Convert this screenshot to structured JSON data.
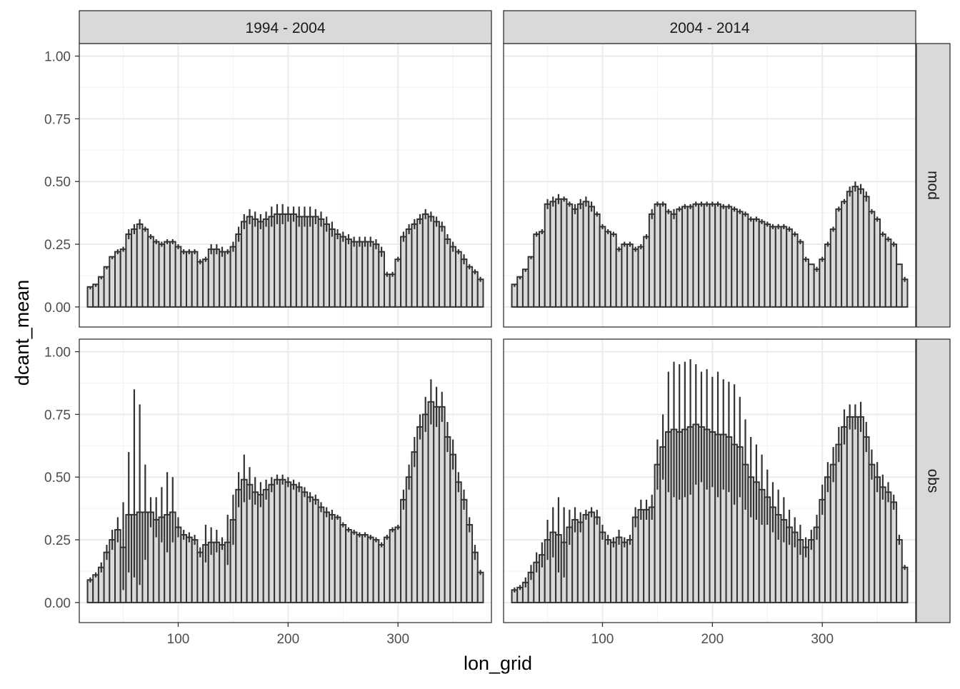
{
  "chart_data": {
    "type": "bar",
    "xlabel": "lon_grid",
    "ylabel": "dcant_mean",
    "xlim": [
      10,
      385
    ],
    "ylim": [
      -0.08,
      1.05
    ],
    "xticks": [
      100,
      200,
      300
    ],
    "yticks": [
      0.0,
      0.25,
      0.5,
      0.75,
      1.0
    ],
    "ytick_labels": [
      "0.00",
      "0.25",
      "0.50",
      "0.75",
      "1.00"
    ],
    "grid": true,
    "column_facets": [
      "1994 - 2004",
      "2004 - 2014"
    ],
    "row_facets": [
      "mod",
      "obs"
    ],
    "bar_fill": "#d9d9d9",
    "bar_outline": "#333333",
    "strip_fill": "#d9d9d9",
    "panels": [
      {
        "column": "1994 - 2004",
        "row": "mod",
        "x": [
          20,
          25,
          30,
          35,
          40,
          45,
          50,
          55,
          60,
          65,
          70,
          75,
          80,
          85,
          90,
          95,
          100,
          105,
          110,
          115,
          120,
          125,
          130,
          135,
          140,
          145,
          150,
          155,
          160,
          165,
          170,
          175,
          180,
          185,
          190,
          195,
          200,
          205,
          210,
          215,
          220,
          225,
          230,
          235,
          240,
          245,
          250,
          255,
          260,
          265,
          270,
          275,
          280,
          285,
          290,
          295,
          300,
          305,
          310,
          315,
          320,
          325,
          330,
          335,
          340,
          345,
          350,
          355,
          360,
          365,
          370,
          375
        ],
        "values": [
          0.08,
          0.09,
          0.12,
          0.16,
          0.2,
          0.22,
          0.23,
          0.29,
          0.31,
          0.33,
          0.31,
          0.28,
          0.26,
          0.25,
          0.26,
          0.26,
          0.24,
          0.22,
          0.22,
          0.22,
          0.18,
          0.19,
          0.23,
          0.23,
          0.22,
          0.22,
          0.24,
          0.29,
          0.34,
          0.36,
          0.35,
          0.34,
          0.35,
          0.36,
          0.37,
          0.37,
          0.37,
          0.37,
          0.36,
          0.36,
          0.36,
          0.36,
          0.35,
          0.33,
          0.31,
          0.29,
          0.28,
          0.27,
          0.26,
          0.26,
          0.26,
          0.26,
          0.25,
          0.22,
          0.13,
          0.13,
          0.19,
          0.28,
          0.31,
          0.33,
          0.35,
          0.37,
          0.36,
          0.34,
          0.32,
          0.27,
          0.24,
          0.22,
          0.19,
          0.16,
          0.14,
          0.11
        ],
        "upper": [
          0.08,
          0.09,
          0.12,
          0.16,
          0.2,
          0.23,
          0.24,
          0.31,
          0.33,
          0.35,
          0.32,
          0.29,
          0.27,
          0.26,
          0.27,
          0.27,
          0.25,
          0.23,
          0.23,
          0.23,
          0.19,
          0.2,
          0.25,
          0.25,
          0.24,
          0.23,
          0.26,
          0.32,
          0.37,
          0.39,
          0.38,
          0.37,
          0.38,
          0.4,
          0.41,
          0.41,
          0.4,
          0.4,
          0.4,
          0.4,
          0.4,
          0.39,
          0.38,
          0.36,
          0.34,
          0.31,
          0.3,
          0.29,
          0.28,
          0.28,
          0.28,
          0.28,
          0.27,
          0.24,
          0.14,
          0.14,
          0.2,
          0.3,
          0.33,
          0.35,
          0.37,
          0.39,
          0.38,
          0.36,
          0.34,
          0.29,
          0.26,
          0.23,
          0.21,
          0.17,
          0.15,
          0.12
        ],
        "lower": [
          0.07,
          0.08,
          0.11,
          0.15,
          0.19,
          0.21,
          0.22,
          0.27,
          0.29,
          0.31,
          0.3,
          0.27,
          0.25,
          0.24,
          0.25,
          0.25,
          0.23,
          0.21,
          0.21,
          0.21,
          0.17,
          0.18,
          0.21,
          0.21,
          0.2,
          0.21,
          0.22,
          0.26,
          0.31,
          0.33,
          0.32,
          0.31,
          0.32,
          0.32,
          0.33,
          0.33,
          0.34,
          0.34,
          0.32,
          0.32,
          0.32,
          0.33,
          0.32,
          0.3,
          0.28,
          0.27,
          0.26,
          0.25,
          0.24,
          0.24,
          0.24,
          0.24,
          0.23,
          0.2,
          0.12,
          0.12,
          0.18,
          0.26,
          0.29,
          0.31,
          0.33,
          0.35,
          0.34,
          0.32,
          0.3,
          0.25,
          0.22,
          0.21,
          0.17,
          0.15,
          0.13,
          0.1
        ]
      },
      {
        "column": "2004 - 2014",
        "row": "mod",
        "x": [
          20,
          25,
          30,
          35,
          40,
          45,
          50,
          55,
          60,
          65,
          70,
          75,
          80,
          85,
          90,
          95,
          100,
          105,
          110,
          115,
          120,
          125,
          130,
          135,
          140,
          145,
          150,
          155,
          160,
          165,
          170,
          175,
          180,
          185,
          190,
          195,
          200,
          205,
          210,
          215,
          220,
          225,
          230,
          235,
          240,
          245,
          250,
          255,
          260,
          265,
          270,
          275,
          280,
          285,
          290,
          295,
          300,
          305,
          310,
          315,
          320,
          325,
          330,
          335,
          340,
          345,
          350,
          355,
          360,
          365,
          370,
          375
        ],
        "values": [
          0.09,
          0.12,
          0.15,
          0.2,
          0.29,
          0.3,
          0.41,
          0.42,
          0.43,
          0.43,
          0.41,
          0.39,
          0.41,
          0.42,
          0.4,
          0.37,
          0.32,
          0.3,
          0.29,
          0.23,
          0.25,
          0.25,
          0.23,
          0.24,
          0.28,
          0.37,
          0.41,
          0.41,
          0.38,
          0.37,
          0.39,
          0.4,
          0.4,
          0.41,
          0.41,
          0.41,
          0.41,
          0.41,
          0.4,
          0.4,
          0.39,
          0.38,
          0.37,
          0.35,
          0.35,
          0.34,
          0.33,
          0.32,
          0.32,
          0.32,
          0.31,
          0.29,
          0.26,
          0.19,
          0.17,
          0.15,
          0.19,
          0.25,
          0.31,
          0.39,
          0.42,
          0.46,
          0.48,
          0.47,
          0.44,
          0.38,
          0.35,
          0.29,
          0.27,
          0.25,
          0.17,
          0.11
        ],
        "upper": [
          0.09,
          0.12,
          0.15,
          0.2,
          0.3,
          0.31,
          0.43,
          0.44,
          0.45,
          0.44,
          0.42,
          0.41,
          0.43,
          0.44,
          0.42,
          0.38,
          0.33,
          0.31,
          0.3,
          0.24,
          0.26,
          0.26,
          0.24,
          0.25,
          0.29,
          0.39,
          0.42,
          0.42,
          0.39,
          0.39,
          0.4,
          0.41,
          0.41,
          0.42,
          0.42,
          0.42,
          0.42,
          0.42,
          0.41,
          0.41,
          0.4,
          0.39,
          0.38,
          0.36,
          0.36,
          0.35,
          0.34,
          0.33,
          0.33,
          0.33,
          0.32,
          0.3,
          0.27,
          0.2,
          0.17,
          0.16,
          0.2,
          0.26,
          0.32,
          0.4,
          0.43,
          0.48,
          0.5,
          0.49,
          0.46,
          0.39,
          0.36,
          0.3,
          0.28,
          0.26,
          0.17,
          0.12
        ],
        "lower": [
          0.08,
          0.11,
          0.14,
          0.19,
          0.28,
          0.29,
          0.39,
          0.4,
          0.41,
          0.42,
          0.4,
          0.37,
          0.39,
          0.4,
          0.38,
          0.36,
          0.31,
          0.29,
          0.28,
          0.22,
          0.24,
          0.24,
          0.22,
          0.23,
          0.27,
          0.35,
          0.4,
          0.4,
          0.37,
          0.35,
          0.38,
          0.39,
          0.39,
          0.4,
          0.4,
          0.4,
          0.4,
          0.4,
          0.39,
          0.39,
          0.38,
          0.37,
          0.36,
          0.34,
          0.34,
          0.33,
          0.32,
          0.31,
          0.31,
          0.31,
          0.3,
          0.28,
          0.25,
          0.18,
          0.17,
          0.14,
          0.18,
          0.24,
          0.3,
          0.38,
          0.41,
          0.44,
          0.46,
          0.45,
          0.42,
          0.37,
          0.34,
          0.28,
          0.26,
          0.24,
          0.17,
          0.1
        ]
      },
      {
        "column": "1994 - 2004",
        "row": "obs",
        "x": [
          20,
          25,
          30,
          35,
          40,
          45,
          50,
          55,
          60,
          65,
          70,
          75,
          80,
          85,
          90,
          95,
          100,
          105,
          110,
          115,
          120,
          125,
          130,
          135,
          140,
          145,
          150,
          155,
          160,
          165,
          170,
          175,
          180,
          185,
          190,
          195,
          200,
          205,
          210,
          215,
          220,
          225,
          230,
          235,
          240,
          245,
          250,
          255,
          260,
          265,
          270,
          275,
          280,
          285,
          290,
          295,
          300,
          305,
          310,
          315,
          320,
          325,
          330,
          335,
          340,
          345,
          350,
          355,
          360,
          365,
          370,
          375
        ],
        "values": [
          0.09,
          0.11,
          0.14,
          0.2,
          0.25,
          0.29,
          0.22,
          0.35,
          0.35,
          0.36,
          0.36,
          0.36,
          0.33,
          0.34,
          0.35,
          0.36,
          0.3,
          0.27,
          0.26,
          0.25,
          0.2,
          0.23,
          0.24,
          0.24,
          0.23,
          0.24,
          0.33,
          0.45,
          0.49,
          0.47,
          0.44,
          0.43,
          0.45,
          0.47,
          0.49,
          0.49,
          0.48,
          0.47,
          0.46,
          0.44,
          0.42,
          0.41,
          0.38,
          0.36,
          0.35,
          0.34,
          0.31,
          0.29,
          0.28,
          0.27,
          0.27,
          0.26,
          0.25,
          0.23,
          0.26,
          0.29,
          0.3,
          0.41,
          0.5,
          0.6,
          0.7,
          0.75,
          0.8,
          0.78,
          0.78,
          0.66,
          0.59,
          0.48,
          0.41,
          0.31,
          0.2,
          0.12
        ],
        "upper": [
          0.1,
          0.12,
          0.16,
          0.23,
          0.29,
          0.34,
          0.4,
          0.6,
          0.85,
          0.79,
          0.55,
          0.42,
          0.42,
          0.46,
          0.52,
          0.5,
          0.34,
          0.29,
          0.28,
          0.27,
          0.22,
          0.31,
          0.3,
          0.29,
          0.26,
          0.35,
          0.43,
          0.52,
          0.59,
          0.54,
          0.5,
          0.48,
          0.49,
          0.5,
          0.51,
          0.51,
          0.5,
          0.49,
          0.48,
          0.46,
          0.44,
          0.43,
          0.4,
          0.38,
          0.37,
          0.35,
          0.32,
          0.3,
          0.29,
          0.28,
          0.28,
          0.27,
          0.26,
          0.24,
          0.27,
          0.3,
          0.31,
          0.45,
          0.55,
          0.66,
          0.75,
          0.82,
          0.89,
          0.86,
          0.84,
          0.72,
          0.65,
          0.52,
          0.45,
          0.34,
          0.23,
          0.13
        ],
        "lower": [
          0.08,
          0.1,
          0.12,
          0.17,
          0.21,
          0.24,
          0.05,
          0.12,
          0.1,
          0.07,
          0.17,
          0.3,
          0.26,
          0.24,
          0.2,
          0.24,
          0.26,
          0.25,
          0.24,
          0.23,
          0.18,
          0.16,
          0.19,
          0.2,
          0.21,
          0.15,
          0.23,
          0.38,
          0.4,
          0.41,
          0.39,
          0.38,
          0.41,
          0.44,
          0.47,
          0.47,
          0.46,
          0.45,
          0.44,
          0.42,
          0.4,
          0.39,
          0.36,
          0.34,
          0.33,
          0.33,
          0.3,
          0.28,
          0.27,
          0.26,
          0.26,
          0.25,
          0.24,
          0.22,
          0.25,
          0.28,
          0.29,
          0.37,
          0.45,
          0.54,
          0.65,
          0.68,
          0.71,
          0.7,
          0.72,
          0.6,
          0.53,
          0.44,
          0.37,
          0.28,
          0.17,
          0.11
        ]
      },
      {
        "column": "2004 - 2014",
        "row": "obs",
        "x": [
          20,
          25,
          30,
          35,
          40,
          45,
          50,
          55,
          60,
          65,
          70,
          75,
          80,
          85,
          90,
          95,
          100,
          105,
          110,
          115,
          120,
          125,
          130,
          135,
          140,
          145,
          150,
          155,
          160,
          165,
          170,
          175,
          180,
          185,
          190,
          195,
          200,
          205,
          210,
          215,
          220,
          225,
          230,
          235,
          240,
          245,
          250,
          255,
          260,
          265,
          270,
          275,
          280,
          285,
          290,
          295,
          300,
          305,
          310,
          315,
          320,
          325,
          330,
          335,
          340,
          345,
          350,
          355,
          360,
          365,
          370,
          375
        ],
        "values": [
          0.05,
          0.06,
          0.08,
          0.12,
          0.16,
          0.19,
          0.25,
          0.28,
          0.27,
          0.24,
          0.3,
          0.33,
          0.32,
          0.35,
          0.36,
          0.34,
          0.28,
          0.25,
          0.24,
          0.26,
          0.24,
          0.25,
          0.34,
          0.37,
          0.37,
          0.38,
          0.55,
          0.62,
          0.68,
          0.69,
          0.68,
          0.69,
          0.7,
          0.71,
          0.7,
          0.69,
          0.68,
          0.67,
          0.67,
          0.66,
          0.63,
          0.62,
          0.55,
          0.5,
          0.48,
          0.45,
          0.42,
          0.38,
          0.35,
          0.33,
          0.3,
          0.28,
          0.25,
          0.22,
          0.25,
          0.3,
          0.41,
          0.5,
          0.55,
          0.63,
          0.7,
          0.74,
          0.74,
          0.74,
          0.66,
          0.55,
          0.5,
          0.46,
          0.44,
          0.4,
          0.25,
          0.14
        ],
        "upper": [
          0.06,
          0.07,
          0.1,
          0.15,
          0.2,
          0.24,
          0.33,
          0.38,
          0.42,
          0.38,
          0.37,
          0.38,
          0.36,
          0.37,
          0.38,
          0.37,
          0.31,
          0.27,
          0.26,
          0.29,
          0.26,
          0.27,
          0.38,
          0.41,
          0.41,
          0.43,
          0.65,
          0.75,
          0.92,
          0.96,
          0.95,
          0.96,
          0.97,
          0.95,
          0.92,
          0.93,
          0.9,
          0.92,
          0.89,
          0.88,
          0.87,
          0.82,
          0.73,
          0.66,
          0.63,
          0.59,
          0.53,
          0.48,
          0.45,
          0.42,
          0.37,
          0.34,
          0.31,
          0.26,
          0.29,
          0.35,
          0.47,
          0.56,
          0.62,
          0.7,
          0.77,
          0.79,
          0.79,
          0.8,
          0.72,
          0.61,
          0.56,
          0.51,
          0.48,
          0.43,
          0.27,
          0.15
        ],
        "lower": [
          0.04,
          0.05,
          0.06,
          0.09,
          0.12,
          0.14,
          0.17,
          0.18,
          0.12,
          0.1,
          0.23,
          0.28,
          0.28,
          0.33,
          0.34,
          0.31,
          0.25,
          0.23,
          0.22,
          0.23,
          0.22,
          0.23,
          0.3,
          0.33,
          0.33,
          0.33,
          0.45,
          0.49,
          0.44,
          0.42,
          0.41,
          0.42,
          0.43,
          0.47,
          0.48,
          0.45,
          0.46,
          0.42,
          0.45,
          0.44,
          0.39,
          0.42,
          0.37,
          0.34,
          0.33,
          0.31,
          0.31,
          0.28,
          0.25,
          0.24,
          0.23,
          0.22,
          0.19,
          0.18,
          0.21,
          0.25,
          0.35,
          0.44,
          0.48,
          0.56,
          0.63,
          0.69,
          0.69,
          0.68,
          0.6,
          0.49,
          0.44,
          0.41,
          0.4,
          0.37,
          0.23,
          0.13
        ]
      }
    ]
  }
}
